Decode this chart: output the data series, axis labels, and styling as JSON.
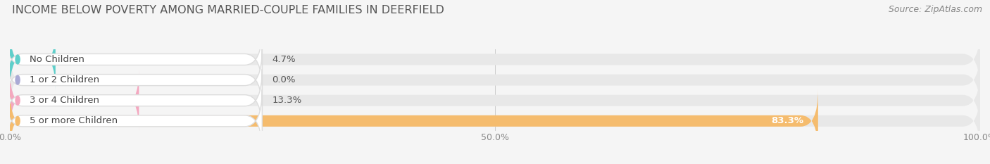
{
  "title": "INCOME BELOW POVERTY AMONG MARRIED-COUPLE FAMILIES IN DEERFIELD",
  "source_text": "Source: ZipAtlas.com",
  "categories": [
    "No Children",
    "1 or 2 Children",
    "3 or 4 Children",
    "5 or more Children"
  ],
  "values": [
    4.7,
    0.0,
    13.3,
    83.3
  ],
  "bar_colors": [
    "#5ecfca",
    "#aaaad5",
    "#f4a8c0",
    "#f5bc6e"
  ],
  "xlim": [
    0,
    100
  ],
  "background_color": "#f5f5f5",
  "bar_bg_color": "#e8e8e8",
  "title_fontsize": 11.5,
  "label_fontsize": 9.5,
  "value_fontsize": 9.5,
  "tick_fontsize": 9,
  "source_fontsize": 9
}
